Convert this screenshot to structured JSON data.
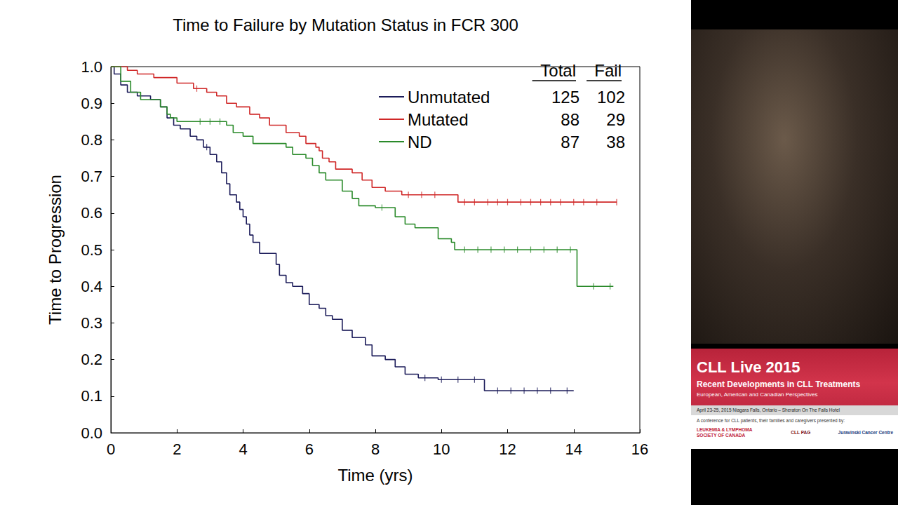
{
  "chart_data": {
    "type": "line",
    "title": "Time to Failure by Mutation Status in FCR 300",
    "x_label": "Time (yrs)",
    "y_label": "Time to Progression",
    "xlim": [
      0,
      16
    ],
    "xticks": [
      0,
      2,
      4,
      6,
      8,
      10,
      12,
      14,
      16
    ],
    "ylim": [
      0,
      1
    ],
    "yticks": [
      {
        "value": 0,
        "label": "0.0"
      },
      {
        "value": 0.1,
        "label": "0.1"
      },
      {
        "value": 0.2,
        "label": "0.2"
      },
      {
        "value": 0.3,
        "label": "0.3"
      },
      {
        "value": 0.4,
        "label": "0.4"
      },
      {
        "value": 0.5,
        "label": "0.5"
      },
      {
        "value": 0.6,
        "label": "0.6"
      },
      {
        "value": 0.7,
        "label": "0.7"
      },
      {
        "value": 0.8,
        "label": "0.8"
      },
      {
        "value": 0.9,
        "label": "0.9"
      },
      {
        "value": 1,
        "label": "1.0"
      }
    ],
    "grid": false,
    "legend": "top-right",
    "legend_headers": [
      "Total",
      "Fail"
    ],
    "series": [
      {
        "name": "Unmutated",
        "color": "#1c1c5a",
        "line_style": "step",
        "total": 125,
        "fail": 102,
        "x": [
          0,
          0.1,
          0.3,
          0.5,
          0.8,
          1.2,
          1.5,
          1.7,
          1.9,
          2.1,
          2.4,
          2.6,
          2.8,
          3.0,
          3.2,
          3.35,
          3.5,
          3.6,
          3.8,
          3.9,
          4.0,
          4.1,
          4.2,
          4.3,
          4.5,
          5.0,
          5.1,
          5.3,
          5.5,
          5.8,
          6.0,
          6.3,
          6.5,
          6.7,
          7.0,
          7.3,
          7.7,
          7.9,
          8.3,
          8.6,
          8.9,
          9.3,
          9.9,
          11.3,
          14.0
        ],
        "values": [
          1.0,
          0.98,
          0.95,
          0.93,
          0.92,
          0.91,
          0.89,
          0.86,
          0.84,
          0.83,
          0.81,
          0.8,
          0.78,
          0.76,
          0.74,
          0.71,
          0.68,
          0.65,
          0.63,
          0.61,
          0.59,
          0.57,
          0.54,
          0.52,
          0.49,
          0.46,
          0.43,
          0.41,
          0.4,
          0.38,
          0.35,
          0.34,
          0.32,
          0.31,
          0.28,
          0.26,
          0.24,
          0.21,
          0.2,
          0.18,
          0.16,
          0.15,
          0.145,
          0.115,
          0.115
        ],
        "censored": {
          "x": [
            2.9,
            9.5,
            10.0,
            10.5,
            11.0,
            11.7,
            12.1,
            12.5,
            12.9,
            13.3,
            13.8
          ],
          "values": [
            0.78,
            0.15,
            0.145,
            0.145,
            0.145,
            0.115,
            0.115,
            0.115,
            0.115,
            0.115,
            0.115
          ]
        }
      },
      {
        "name": "Mutated",
        "color": "#d02828",
        "line_style": "step",
        "total": 88,
        "fail": 29,
        "x": [
          0,
          0.5,
          0.8,
          1.3,
          2.0,
          2.5,
          2.9,
          3.2,
          3.5,
          3.8,
          4.2,
          4.5,
          4.8,
          5.3,
          5.7,
          5.9,
          6.2,
          6.3,
          6.4,
          6.6,
          6.8,
          7.3,
          7.6,
          7.9,
          8.3,
          8.8,
          10.5,
          15.3
        ],
        "values": [
          1.0,
          0.99,
          0.98,
          0.97,
          0.955,
          0.94,
          0.93,
          0.92,
          0.9,
          0.89,
          0.87,
          0.86,
          0.84,
          0.82,
          0.81,
          0.79,
          0.78,
          0.77,
          0.75,
          0.74,
          0.72,
          0.71,
          0.69,
          0.67,
          0.66,
          0.65,
          0.63,
          0.63
        ],
        "censored": {
          "x": [
            2.6,
            9.0,
            9.4,
            9.8,
            10.7,
            11.0,
            11.4,
            11.7,
            12.0,
            12.4,
            12.7,
            13.0,
            13.3,
            13.6,
            14.0,
            14.3,
            14.7,
            15.3
          ],
          "values": [
            0.94,
            0.65,
            0.65,
            0.65,
            0.63,
            0.63,
            0.63,
            0.63,
            0.63,
            0.63,
            0.63,
            0.63,
            0.63,
            0.63,
            0.63,
            0.63,
            0.63,
            0.63
          ]
        }
      },
      {
        "name": "ND",
        "color": "#2a8a2a",
        "line_style": "step",
        "total": 87,
        "fail": 38,
        "x": [
          0,
          0.3,
          0.6,
          0.9,
          1.5,
          1.7,
          1.8,
          2.0,
          3.5,
          3.7,
          4.0,
          4.3,
          5.3,
          5.5,
          5.9,
          6.1,
          6.3,
          6.5,
          7.0,
          7.3,
          7.5,
          8.0,
          8.6,
          8.9,
          9.2,
          9.9,
          10.3,
          10.4,
          14.1,
          15.2
        ],
        "values": [
          1.0,
          0.96,
          0.93,
          0.91,
          0.89,
          0.87,
          0.86,
          0.85,
          0.84,
          0.82,
          0.81,
          0.79,
          0.78,
          0.76,
          0.75,
          0.73,
          0.71,
          0.69,
          0.66,
          0.64,
          0.62,
          0.615,
          0.59,
          0.57,
          0.56,
          0.53,
          0.52,
          0.5,
          0.4,
          0.4
        ],
        "censored": {
          "x": [
            2.7,
            3.0,
            3.3,
            8.2,
            10.7,
            11.1,
            11.5,
            11.9,
            12.3,
            12.7,
            13.1,
            13.5,
            13.9,
            14.6,
            15.1
          ],
          "values": [
            0.85,
            0.85,
            0.85,
            0.615,
            0.5,
            0.5,
            0.5,
            0.5,
            0.5,
            0.5,
            0.5,
            0.5,
            0.5,
            0.4,
            0.4
          ]
        }
      }
    ]
  },
  "sidebar": {
    "banner": {
      "title": "CLL Live 2015",
      "subtitle": "Recent Developments in CLL Treatments",
      "tagline": "European, American and Canadian Perspectives",
      "dates": "April 23-25, 2015 Niagara Falls, Ontario – Sheraton On The Falls Hotel",
      "presented_by": "A conference for CLL patients, their families and caregivers presented by:",
      "logos": [
        "LEUKEMIA & LYMPHOMA SOCIETY OF CANADA",
        "CLL PAG",
        "Juravinski Cancer Centre"
      ]
    }
  }
}
